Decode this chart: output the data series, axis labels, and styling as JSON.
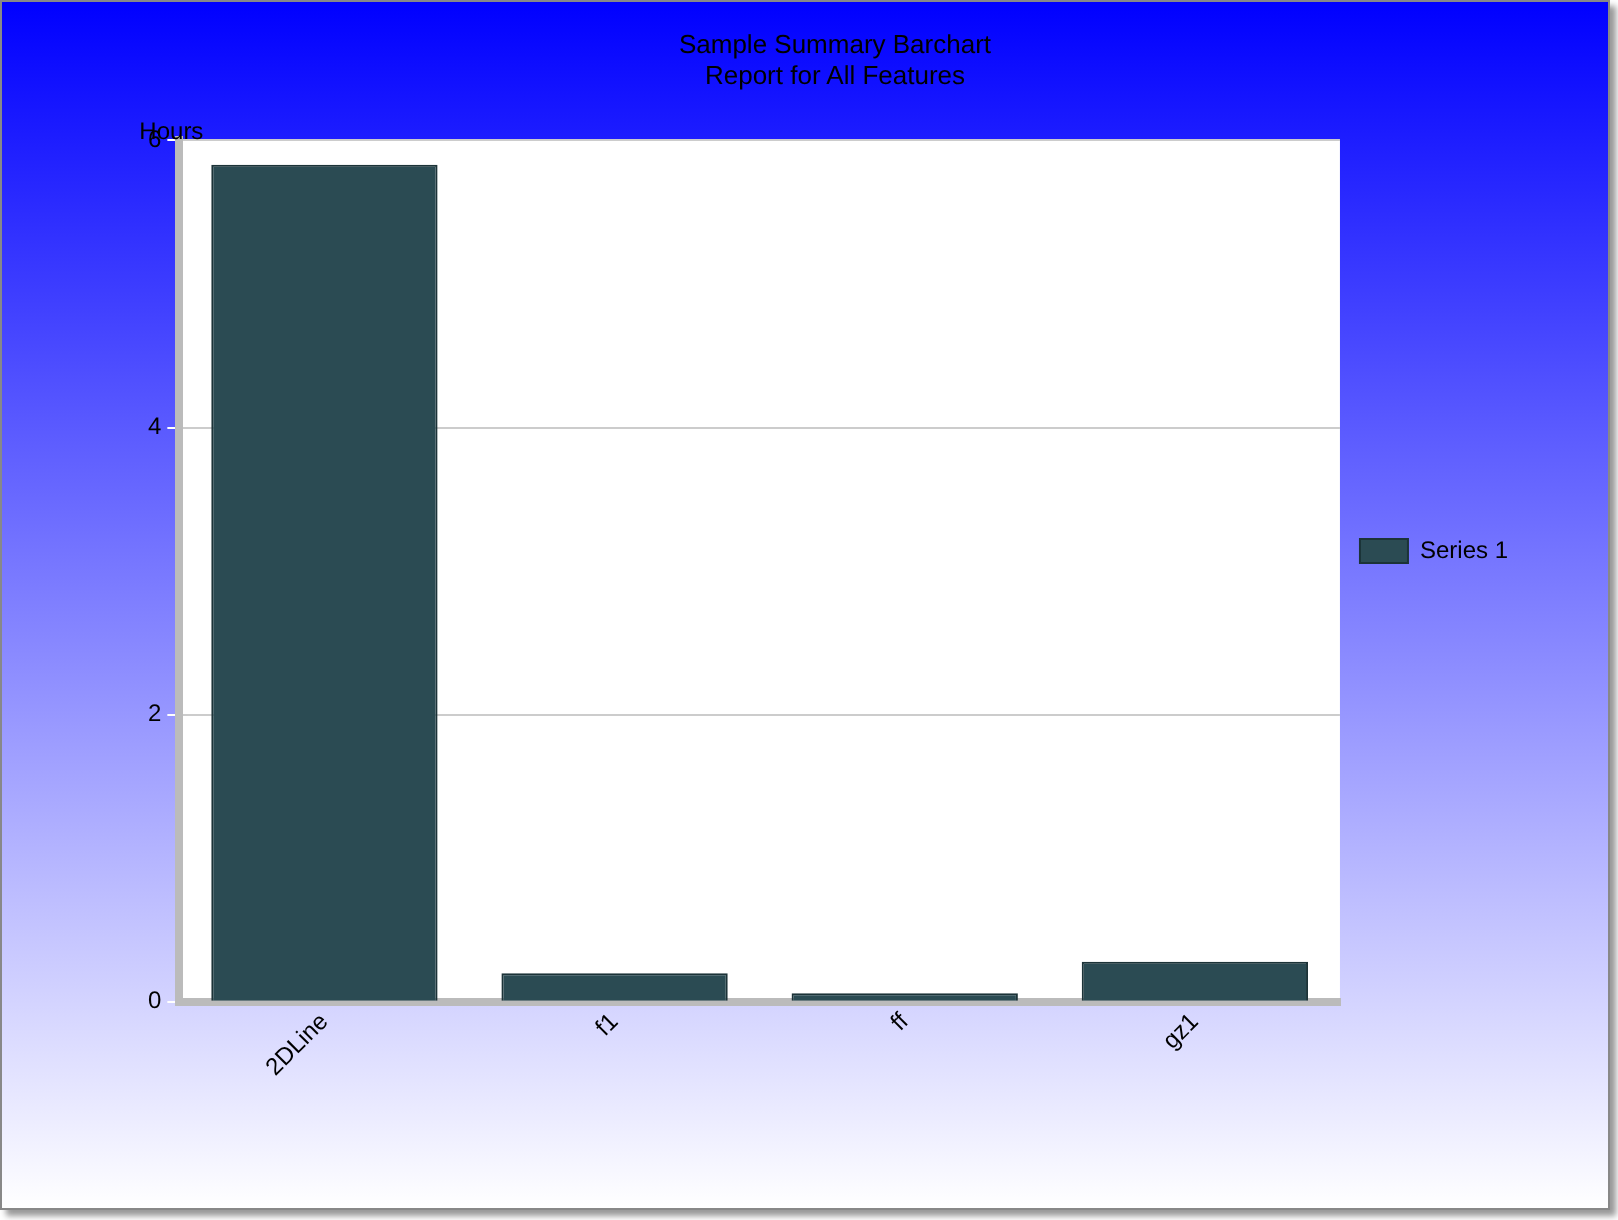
{
  "chart_data": {
    "type": "bar",
    "title": "Sample Summary Barchart",
    "subtitle": "Report for All Features",
    "ylabel": "Hours",
    "categories": [
      "2DLine",
      "f1",
      "ff",
      "gz1"
    ],
    "series": [
      {
        "name": "Series 1",
        "color": "#2b4b53",
        "values": [
          5.83,
          0.2,
          0.06,
          0.28
        ]
      }
    ],
    "ylim": [
      0,
      6
    ],
    "yticks": [
      0,
      2,
      4,
      6
    ],
    "grid": "y",
    "legend": "right"
  }
}
